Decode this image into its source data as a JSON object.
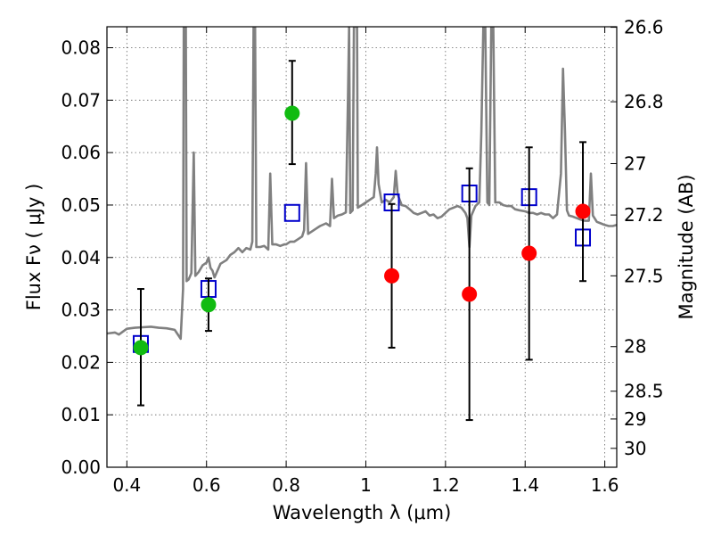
{
  "chart_data": {
    "type": "scatter",
    "xlabel": "Wavelength  λ (μm)",
    "ylabel": "Flux  Fν  ( μJy )",
    "y2label": "Magnitude (AB)",
    "xlim": [
      0.35,
      1.63
    ],
    "ylim": [
      0.0,
      0.084
    ],
    "xticks": [
      0.4,
      0.6,
      0.8,
      1.0,
      1.2,
      1.4,
      1.6
    ],
    "xtick_labels": [
      "0.4",
      "0.6",
      "0.8",
      "1",
      "1.2",
      "1.4",
      "1.6"
    ],
    "yticks": [
      0.0,
      0.01,
      0.02,
      0.03,
      0.04,
      0.05,
      0.06,
      0.07,
      0.08
    ],
    "ytick_labels": [
      "0.00",
      "0.01",
      "0.02",
      "0.03",
      "0.04",
      "0.05",
      "0.06",
      "0.07",
      "0.08"
    ],
    "y2ticks": [
      {
        "label": "26.6",
        "flux": 0.0839
      },
      {
        "label": "26.8",
        "flux": 0.0697
      },
      {
        "label": "27",
        "flux": 0.0579
      },
      {
        "label": "27.2",
        "flux": 0.0481
      },
      {
        "label": "27.5",
        "flux": 0.0365
      },
      {
        "label": "28",
        "flux": 0.023
      },
      {
        "label": "28.5",
        "flux": 0.0145
      },
      {
        "label": "29",
        "flux": 0.0092
      },
      {
        "label": "30",
        "flux": 0.0036
      }
    ],
    "grid": true,
    "series": [
      {
        "style": "line",
        "color": "#808080",
        "points": [
          [
            0.35,
            0.0255
          ],
          [
            0.37,
            0.0257
          ],
          [
            0.38,
            0.0253
          ],
          [
            0.4,
            0.0264
          ],
          [
            0.42,
            0.0266
          ],
          [
            0.44,
            0.0267
          ],
          [
            0.46,
            0.0268
          ],
          [
            0.48,
            0.0266
          ],
          [
            0.5,
            0.0265
          ],
          [
            0.52,
            0.0262
          ],
          [
            0.535,
            0.0245
          ],
          [
            0.541,
            0.034
          ],
          [
            0.543,
            0.084
          ],
          [
            0.548,
            0.084
          ],
          [
            0.55,
            0.0355
          ],
          [
            0.555,
            0.0358
          ],
          [
            0.562,
            0.037
          ],
          [
            0.568,
            0.06
          ],
          [
            0.572,
            0.0365
          ],
          [
            0.58,
            0.0372
          ],
          [
            0.59,
            0.0385
          ],
          [
            0.6,
            0.039
          ],
          [
            0.605,
            0.04
          ],
          [
            0.61,
            0.038
          ],
          [
            0.615,
            0.0375
          ],
          [
            0.62,
            0.0362
          ],
          [
            0.635,
            0.0388
          ],
          [
            0.65,
            0.0395
          ],
          [
            0.66,
            0.0405
          ],
          [
            0.67,
            0.041
          ],
          [
            0.68,
            0.0418
          ],
          [
            0.69,
            0.041
          ],
          [
            0.7,
            0.0418
          ],
          [
            0.71,
            0.0415
          ],
          [
            0.715,
            0.043
          ],
          [
            0.718,
            0.084
          ],
          [
            0.722,
            0.084
          ],
          [
            0.725,
            0.042
          ],
          [
            0.735,
            0.042
          ],
          [
            0.745,
            0.0422
          ],
          [
            0.755,
            0.0415
          ],
          [
            0.76,
            0.056
          ],
          [
            0.765,
            0.0425
          ],
          [
            0.775,
            0.0425
          ],
          [
            0.785,
            0.0422
          ],
          [
            0.795,
            0.0425
          ],
          [
            0.8,
            0.0425
          ],
          [
            0.81,
            0.043
          ],
          [
            0.82,
            0.043
          ],
          [
            0.83,
            0.0435
          ],
          [
            0.84,
            0.044
          ],
          [
            0.845,
            0.0452
          ],
          [
            0.85,
            0.058
          ],
          [
            0.855,
            0.0445
          ],
          [
            0.865,
            0.045
          ],
          [
            0.875,
            0.0455
          ],
          [
            0.885,
            0.046
          ],
          [
            0.9,
            0.0465
          ],
          [
            0.91,
            0.046
          ],
          [
            0.915,
            0.055
          ],
          [
            0.92,
            0.0475
          ],
          [
            0.93,
            0.048
          ],
          [
            0.94,
            0.0482
          ],
          [
            0.95,
            0.0486
          ],
          [
            0.955,
            0.07
          ],
          [
            0.958,
            0.084
          ],
          [
            0.961,
            0.0485
          ],
          [
            0.967,
            0.049
          ],
          [
            0.97,
            0.084
          ],
          [
            0.975,
            0.084
          ],
          [
            0.978,
            0.084
          ],
          [
            0.98,
            0.0495
          ],
          [
            0.99,
            0.05
          ],
          [
            1.0,
            0.0505
          ],
          [
            1.01,
            0.051
          ],
          [
            1.02,
            0.0515
          ],
          [
            1.025,
            0.056
          ],
          [
            1.028,
            0.061
          ],
          [
            1.032,
            0.054
          ],
          [
            1.04,
            0.0505
          ],
          [
            1.05,
            0.051
          ],
          [
            1.06,
            0.0505
          ],
          [
            1.07,
            0.0515
          ],
          [
            1.075,
            0.0565
          ],
          [
            1.08,
            0.052
          ],
          [
            1.09,
            0.05
          ],
          [
            1.1,
            0.0498
          ],
          [
            1.11,
            0.0492
          ],
          [
            1.12,
            0.0485
          ],
          [
            1.13,
            0.0482
          ],
          [
            1.14,
            0.0485
          ],
          [
            1.15,
            0.0488
          ],
          [
            1.16,
            0.048
          ],
          [
            1.17,
            0.0482
          ],
          [
            1.18,
            0.0475
          ],
          [
            1.19,
            0.0478
          ],
          [
            1.2,
            0.0485
          ],
          [
            1.21,
            0.0492
          ],
          [
            1.22,
            0.0495
          ],
          [
            1.23,
            0.0498
          ],
          [
            1.24,
            0.0495
          ],
          [
            1.25,
            0.0485
          ],
          [
            1.255,
            0.0475
          ],
          [
            1.26,
            0.042
          ],
          [
            1.265,
            0.048
          ],
          [
            1.275,
            0.0498
          ],
          [
            1.285,
            0.0505
          ],
          [
            1.29,
            0.064
          ],
          [
            1.295,
            0.084
          ],
          [
            1.3,
            0.084
          ],
          [
            1.305,
            0.0505
          ],
          [
            1.31,
            0.05
          ],
          [
            1.315,
            0.084
          ],
          [
            1.32,
            0.084
          ],
          [
            1.325,
            0.0505
          ],
          [
            1.335,
            0.0505
          ],
          [
            1.345,
            0.05
          ],
          [
            1.355,
            0.0498
          ],
          [
            1.365,
            0.0498
          ],
          [
            1.375,
            0.0492
          ],
          [
            1.385,
            0.049
          ],
          [
            1.4,
            0.0488
          ],
          [
            1.41,
            0.0485
          ],
          [
            1.42,
            0.0485
          ],
          [
            1.43,
            0.0482
          ],
          [
            1.44,
            0.0485
          ],
          [
            1.45,
            0.0482
          ],
          [
            1.46,
            0.0482
          ],
          [
            1.47,
            0.0475
          ],
          [
            1.48,
            0.0482
          ],
          [
            1.49,
            0.056
          ],
          [
            1.495,
            0.076
          ],
          [
            1.5,
            0.064
          ],
          [
            1.505,
            0.049
          ],
          [
            1.51,
            0.048
          ],
          [
            1.52,
            0.0478
          ],
          [
            1.53,
            0.0475
          ],
          [
            1.54,
            0.0472
          ],
          [
            1.55,
            0.047
          ],
          [
            1.56,
            0.047
          ],
          [
            1.565,
            0.056
          ],
          [
            1.57,
            0.048
          ],
          [
            1.58,
            0.0468
          ],
          [
            1.59,
            0.0465
          ],
          [
            1.6,
            0.0462
          ],
          [
            1.61,
            0.046
          ],
          [
            1.62,
            0.046
          ],
          [
            1.63,
            0.0462
          ]
        ]
      },
      {
        "style": "open-square",
        "color": "#0000cc",
        "points": [
          [
            0.435,
            0.0235
          ],
          [
            0.605,
            0.034
          ],
          [
            0.815,
            0.0485
          ],
          [
            1.065,
            0.0505
          ],
          [
            1.26,
            0.0522
          ],
          [
            1.41,
            0.0515
          ],
          [
            1.545,
            0.0438
          ]
        ]
      },
      {
        "style": "filled-circle",
        "color": "#11bb11",
        "points": [
          {
            "x": 0.435,
            "y": 0.0228,
            "lo": 0.0118,
            "hi": 0.034
          },
          {
            "x": 0.605,
            "y": 0.031,
            "lo": 0.026,
            "hi": 0.036
          },
          {
            "x": 0.815,
            "y": 0.0675,
            "lo": 0.0578,
            "hi": 0.0775
          }
        ]
      },
      {
        "style": "filled-circle",
        "color": "#ff0000",
        "points": [
          {
            "x": 1.065,
            "y": 0.0365,
            "lo": 0.0228,
            "hi": 0.0502
          },
          {
            "x": 1.26,
            "y": 0.033,
            "lo": 0.009,
            "hi": 0.057
          },
          {
            "x": 1.41,
            "y": 0.0408,
            "lo": 0.0205,
            "hi": 0.061
          },
          {
            "x": 1.545,
            "y": 0.0488,
            "lo": 0.0355,
            "hi": 0.062
          }
        ]
      }
    ]
  }
}
